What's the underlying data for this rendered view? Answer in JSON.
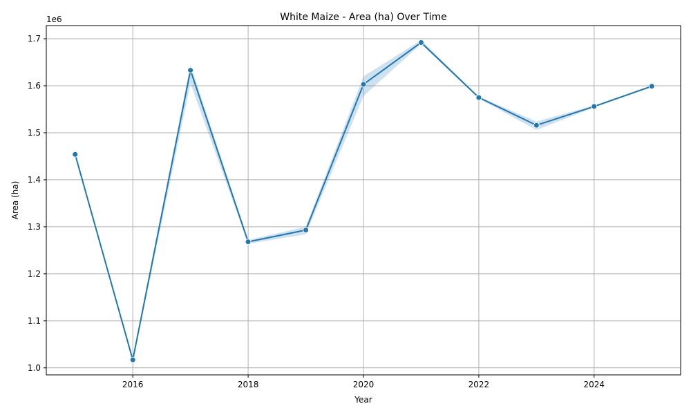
{
  "chart_data": {
    "type": "line",
    "title": "White Maize - Area (ha) Over Time",
    "xlabel": "Year",
    "ylabel": "Area (ha)",
    "y_offset_label": "1e6",
    "xlim": [
      2014.5,
      2025.5
    ],
    "ylim": [
      0.985,
      1.728
    ],
    "x_ticks": [
      2016,
      2018,
      2020,
      2022,
      2024
    ],
    "x_tick_labels": [
      "2016",
      "2018",
      "2020",
      "2022",
      "2024"
    ],
    "y_ticks": [
      1.0,
      1.1,
      1.2,
      1.3,
      1.4,
      1.5,
      1.6,
      1.7
    ],
    "y_tick_labels": [
      "1.0",
      "1.1",
      "1.2",
      "1.3",
      "1.4",
      "1.5",
      "1.6",
      "1.7"
    ],
    "grid": true,
    "series": [
      {
        "color": "#1f77b4",
        "markers": true,
        "x": [
          2015,
          2016,
          2017,
          2018,
          2019,
          2020,
          2021,
          2022,
          2023,
          2024,
          2025
        ],
        "y": [
          1.454,
          1.017,
          1.633,
          1.268,
          1.293,
          1.603,
          1.692,
          1.575,
          1.516,
          1.556,
          1.599
        ],
        "ci_low": [
          1.45,
          1.012,
          1.605,
          1.264,
          1.284,
          1.578,
          1.689,
          1.573,
          1.506,
          1.554,
          1.597
        ],
        "ci_high": [
          1.458,
          1.022,
          1.645,
          1.272,
          1.3,
          1.62,
          1.697,
          1.577,
          1.524,
          1.558,
          1.601
        ]
      }
    ]
  }
}
